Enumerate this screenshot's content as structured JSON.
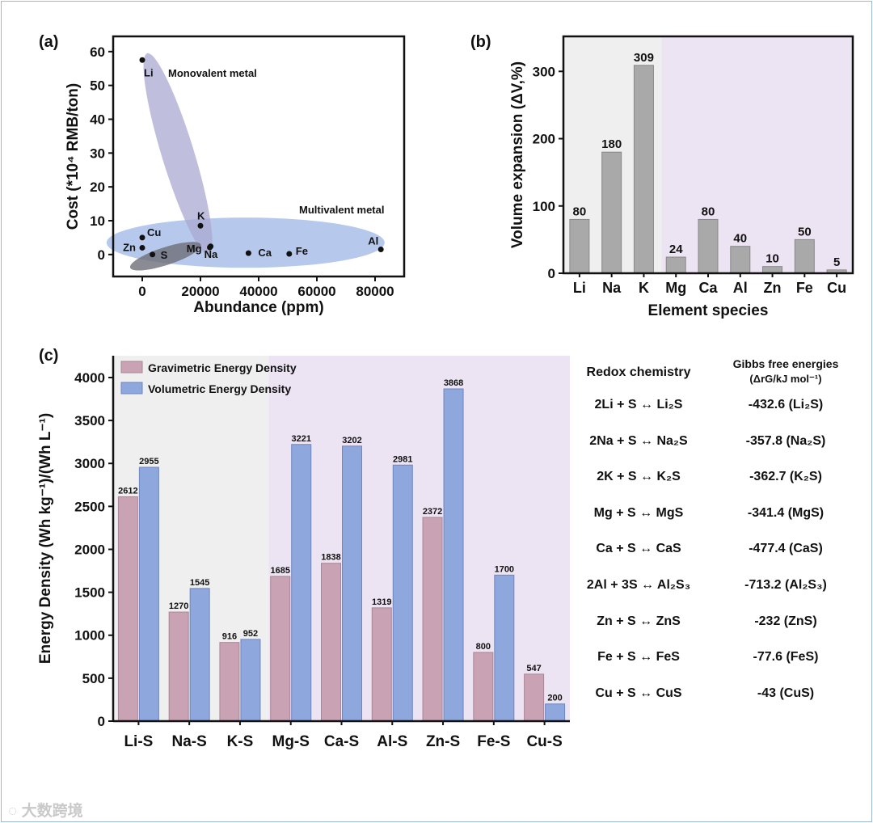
{
  "colors": {
    "grav": "#c9a3b4",
    "vol": "#8ea7dc",
    "bar_b": "#a9a9a9",
    "bg_grey": "#efefef",
    "bg_lav": "#ede4f3",
    "mono": "#a9a8d2",
    "multi": "#9db7e6",
    "s_ellipse": "#6e6e78"
  },
  "watermark": "大数跨境",
  "chart_data": [
    {
      "panel": "(a)",
      "type": "scatter",
      "xlabel": "Abundance (ppm)",
      "ylabel": "Cost (*10⁴ RMB/ton)",
      "xlim": [
        -10000,
        90000
      ],
      "ylim": [
        -6.5,
        64.5
      ],
      "xticks": [
        "0",
        "20000",
        "40000",
        "60000",
        "80000"
      ],
      "xtick_values": [
        0,
        20000,
        40000,
        60000,
        80000
      ],
      "yticks": [
        "0",
        "10",
        "20",
        "30",
        "40",
        "50",
        "60"
      ],
      "ytick_values": [
        0,
        10,
        20,
        30,
        40,
        50,
        60
      ],
      "points": [
        {
          "label": "Li",
          "x": 0,
          "y": 57.5
        },
        {
          "label": "K",
          "x": 20000,
          "y": 8.5
        },
        {
          "label": "Na",
          "x": 23500,
          "y": 2.4
        },
        {
          "label": "Mg",
          "x": 23200,
          "y": 2.1
        },
        {
          "label": "Cu",
          "x": 0,
          "y": 5
        },
        {
          "label": "Zn",
          "x": 0,
          "y": 2
        },
        {
          "label": "S",
          "x": 3500,
          "y": 0
        },
        {
          "label": "Ca",
          "x": 36500,
          "y": 0.4
        },
        {
          "label": "Fe",
          "x": 50500,
          "y": 0.2
        },
        {
          "label": "Al",
          "x": 82000,
          "y": 1.5
        }
      ],
      "annotations": [
        "Monovalent metal",
        "Multivalent metal"
      ]
    },
    {
      "panel": "(b)",
      "type": "bar",
      "xlabel": "Element species",
      "ylabel": "Volume expansion (ΔV,%)",
      "categories": [
        "Li",
        "Na",
        "K",
        "Mg",
        "Ca",
        "Al",
        "Zn",
        "Fe",
        "Cu"
      ],
      "values": [
        80,
        180,
        309,
        24,
        80,
        40,
        10,
        50,
        5
      ],
      "ylim": [
        0,
        352
      ],
      "yticks": [
        "0",
        "100",
        "200",
        "300"
      ],
      "ytick_values": [
        0,
        100,
        200,
        300
      ]
    },
    {
      "panel": "(c)",
      "type": "bar",
      "xlabel": "",
      "ylabel": "Energy Density (Wh kg⁻¹)/(Wh L⁻¹)",
      "categories": [
        "Li-S",
        "Na-S",
        "K-S",
        "Mg-S",
        "Ca-S",
        "Al-S",
        "Zn-S",
        "Fe-S",
        "Cu-S"
      ],
      "series": [
        {
          "name": "Gravimetric Energy Density",
          "values": [
            2612,
            1270,
            916,
            1685,
            1838,
            1319,
            2372,
            800,
            547
          ]
        },
        {
          "name": "Volumetric Energy Density",
          "values": [
            2955,
            1545,
            952,
            3221,
            3202,
            2981,
            3868,
            1700,
            200
          ]
        }
      ],
      "ylim": [
        0,
        4254
      ],
      "yticks": [
        "0",
        "500",
        "1000",
        "1500",
        "2000",
        "2500",
        "3000",
        "3500",
        "4000"
      ],
      "ytick_values": [
        0,
        500,
        1000,
        1500,
        2000,
        2500,
        3000,
        3500,
        4000
      ],
      "legend": "top-left"
    }
  ],
  "table": {
    "header_left": "Redox chemistry",
    "header_right_1": "Gibbs free energies",
    "header_right_2": "(ΔrG/kJ mol⁻¹)",
    "rows": [
      {
        "reaction": "2Li + S ↔ Li₂S",
        "energy": "-432.6 (Li₂S)"
      },
      {
        "reaction": "2Na + S ↔ Na₂S",
        "energy": "-357.8 (Na₂S)"
      },
      {
        "reaction": "2K + S ↔ K₂S",
        "energy": "-362.7 (K₂S)"
      },
      {
        "reaction": "Mg + S ↔ MgS",
        "energy": "-341.4 (MgS)"
      },
      {
        "reaction": "Ca + S ↔ CaS",
        "energy": "-477.4 (CaS)"
      },
      {
        "reaction": "2Al + 3S ↔ Al₂S₃",
        "energy": "-713.2 (Al₂S₃)"
      },
      {
        "reaction": "Zn + S ↔ ZnS",
        "energy": "-232 (ZnS)"
      },
      {
        "reaction": "Fe + S ↔ FeS",
        "energy": "-77.6 (FeS)"
      },
      {
        "reaction": "Cu + S ↔ CuS",
        "energy": "-43 (CuS)"
      }
    ]
  }
}
